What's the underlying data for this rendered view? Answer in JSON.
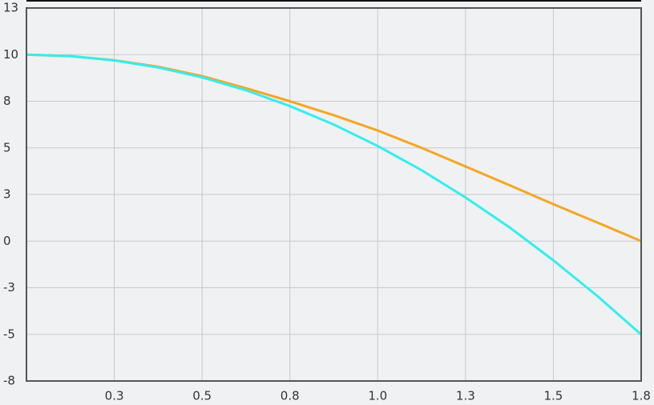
{
  "chart_data": {
    "type": "line",
    "x": [
      0,
      0.125,
      0.25,
      0.375,
      0.5,
      0.625,
      0.75,
      0.875,
      1.0,
      1.125,
      1.25,
      1.375,
      1.5,
      1.625,
      1.75
    ],
    "series": [
      {
        "color": "#f5a623",
        "values": [
          10,
          9.92,
          9.7,
          9.35,
          8.85,
          8.2,
          7.5,
          6.75,
          5.93,
          5.0,
          4.0,
          3.0,
          1.98,
          1.0,
          0
        ]
      },
      {
        "color": "#33eeee",
        "values": [
          10,
          9.92,
          9.69,
          9.31,
          8.78,
          8.09,
          7.24,
          6.25,
          5.1,
          3.8,
          2.34,
          0.74,
          -1.03,
          -2.94,
          -5.01
        ]
      }
    ],
    "xlim": [
      0,
      1.75
    ],
    "xticks": [
      {
        "value": 0.25,
        "label": "0.3"
      },
      {
        "value": 0.5,
        "label": "0.5"
      },
      {
        "value": 0.75,
        "label": "0.8"
      },
      {
        "value": 1.0,
        "label": "1.0"
      },
      {
        "value": 1.25,
        "label": "1.3"
      },
      {
        "value": 1.5,
        "label": "1.5"
      },
      {
        "value": 1.75,
        "label": "1.8"
      }
    ],
    "ylim": [
      -7.5,
      12.5
    ],
    "yticks": [
      {
        "value": -7.5,
        "label": "-8"
      },
      {
        "value": -5,
        "label": "-5"
      },
      {
        "value": -2.5,
        "label": "-3"
      },
      0,
      {
        "value": 2.5,
        "label": "3"
      },
      5,
      {
        "value": 7.5,
        "label": "8"
      },
      10,
      {
        "value": 12.5,
        "label": "13"
      }
    ],
    "grid": true
  }
}
